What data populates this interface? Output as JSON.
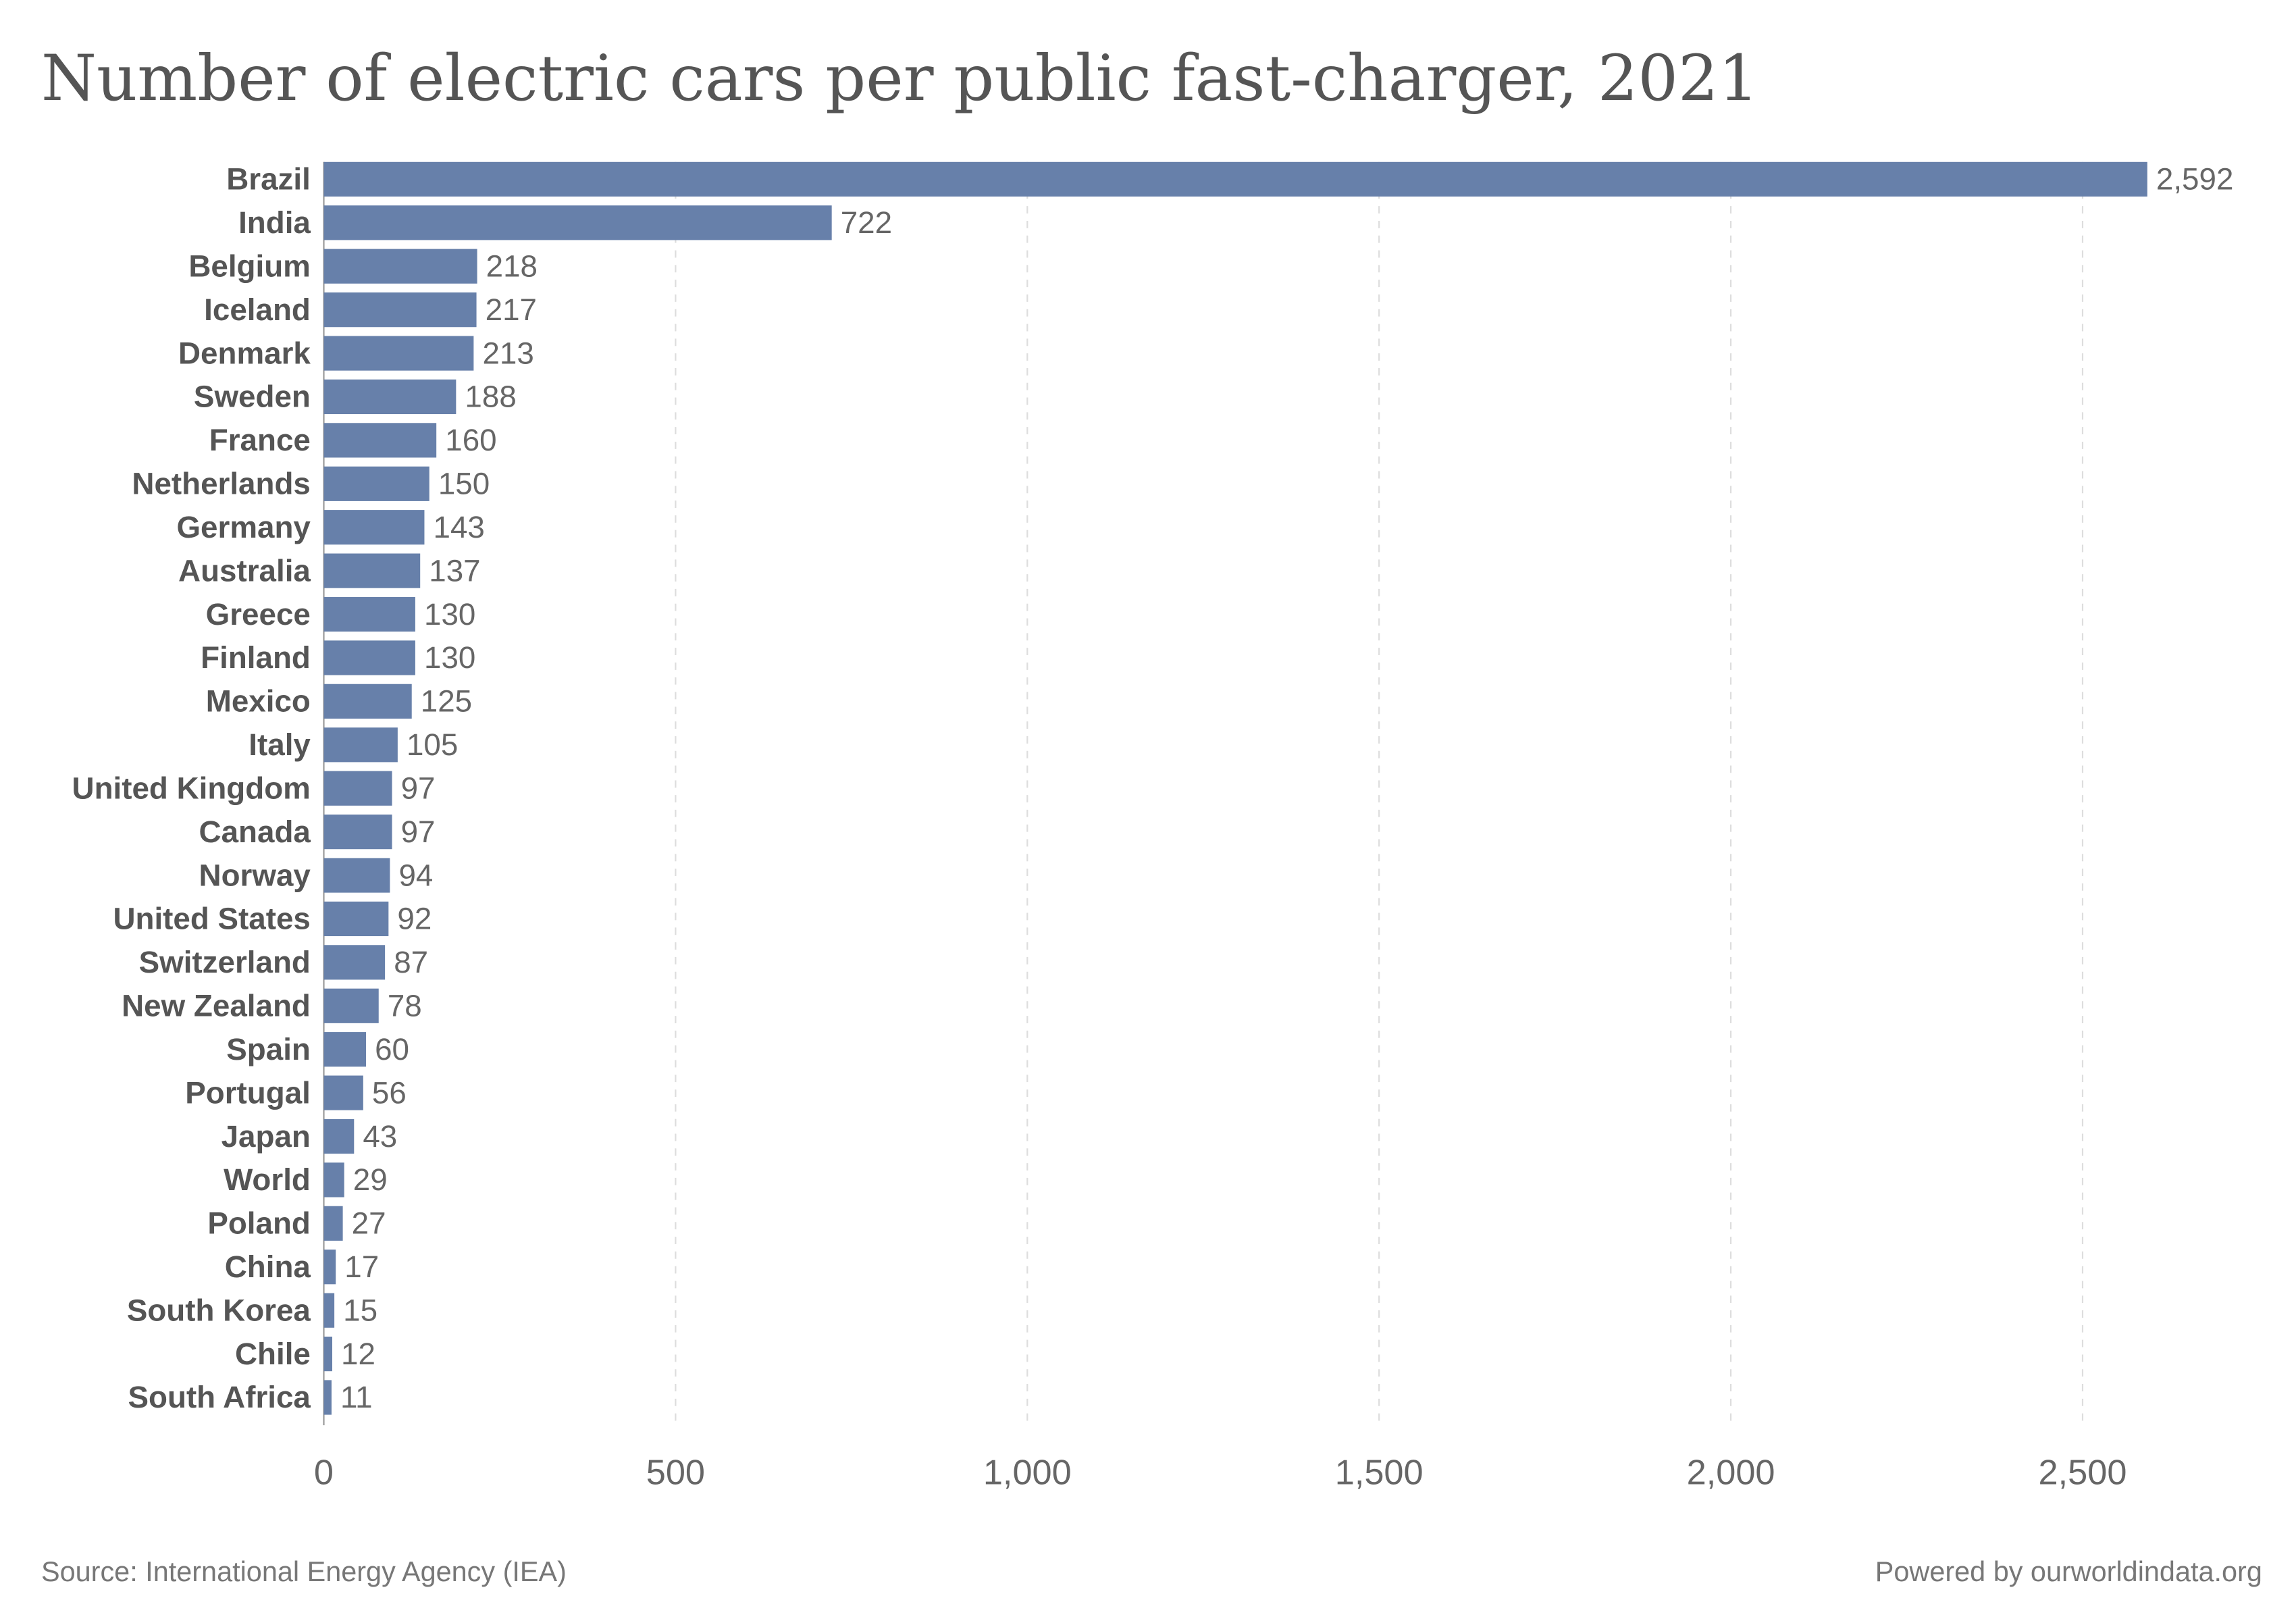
{
  "chart_data": {
    "type": "bar",
    "orientation": "horizontal",
    "title": "Number of electric cars per public fast-charger, 2021",
    "categories": [
      "Brazil",
      "India",
      "Belgium",
      "Iceland",
      "Denmark",
      "Sweden",
      "France",
      "Netherlands",
      "Germany",
      "Australia",
      "Greece",
      "Finland",
      "Mexico",
      "Italy",
      "United Kingdom",
      "Canada",
      "Norway",
      "United States",
      "Switzerland",
      "New Zealand",
      "Spain",
      "Portugal",
      "Japan",
      "World",
      "Poland",
      "China",
      "South Korea",
      "Chile",
      "South Africa"
    ],
    "values": [
      2592,
      722,
      218,
      217,
      213,
      188,
      160,
      150,
      143,
      137,
      130,
      130,
      125,
      105,
      97,
      97,
      94,
      92,
      87,
      78,
      60,
      56,
      43,
      29,
      27,
      17,
      15,
      12,
      11
    ],
    "value_labels": [
      "2,592",
      "722",
      "218",
      "217",
      "213",
      "188",
      "160",
      "150",
      "143",
      "137",
      "130",
      "130",
      "125",
      "105",
      "97",
      "97",
      "94",
      "92",
      "87",
      "78",
      "60",
      "56",
      "43",
      "29",
      "27",
      "17",
      "15",
      "12",
      "11"
    ],
    "xlim": [
      0,
      2700
    ],
    "xticks": [
      0,
      500,
      1000,
      1500,
      2000,
      2500
    ],
    "xtick_labels": [
      "0",
      "500",
      "1,000",
      "1,500",
      "2,000",
      "2,500"
    ],
    "grid": "vertical dashed",
    "bar_color": "#6780aa"
  },
  "footer": {
    "source": "Source: International Energy Agency (IEA)",
    "credit": "Powered by ourworldindata.org"
  }
}
